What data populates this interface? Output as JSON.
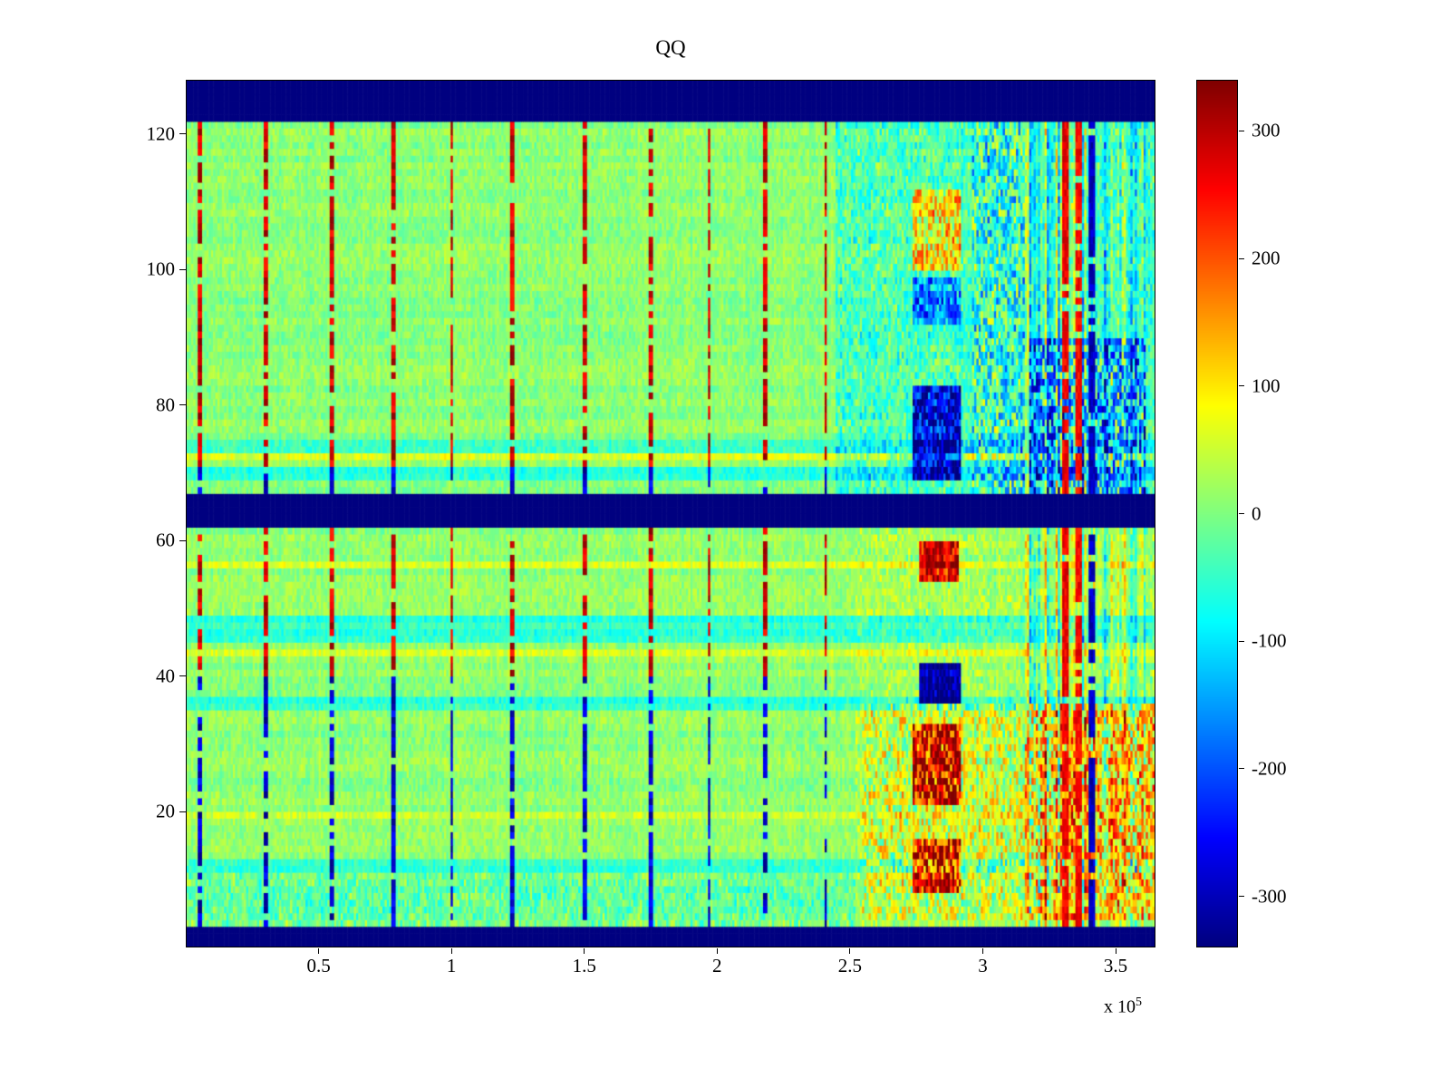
{
  "chart_data": {
    "type": "heatmap",
    "title": "QQ",
    "xlabel": "",
    "ylabel": "",
    "xlim": [
      0,
      365000
    ],
    "ylim": [
      0,
      128
    ],
    "xticks": [
      50000,
      100000,
      150000,
      200000,
      250000,
      300000,
      350000
    ],
    "xtick_labels": [
      "0.5",
      "1",
      "1.5",
      "2",
      "2.5",
      "3",
      "3.5"
    ],
    "x_axis_multiplier": {
      "text": "x 10",
      "exp": "5"
    },
    "yticks": [
      20,
      40,
      60,
      80,
      100,
      120
    ],
    "ytick_labels": [
      "20",
      "40",
      "60",
      "80",
      "100",
      "120"
    ],
    "grid": false,
    "legend": null,
    "colormap": "jet",
    "value_range": [
      -340,
      340
    ],
    "colorbar_ticks": [
      300,
      200,
      100,
      0,
      -100,
      -200,
      -300
    ],
    "colorbar_tick_labels": [
      "300",
      "200",
      "100",
      "0",
      "-100",
      "-200",
      "-300"
    ],
    "generation": {
      "seed": 11,
      "rows": 128,
      "cols": 440,
      "base_mean": 10,
      "row_offset_amp": 24,
      "cell_noise_amp": 60,
      "col_noise_amp": 18,
      "blank_value": -340,
      "blank_bands_y": [
        [
          122.2,
          128
        ],
        [
          62.1,
          66.9
        ],
        [
          0,
          2.6
        ]
      ],
      "cyan_rows": [
        74,
        73,
        70,
        69,
        48,
        47,
        46,
        45,
        36,
        35,
        12,
        11
      ],
      "cyan_row_offset": -65,
      "yellow_rows": [
        72,
        56,
        43,
        19
      ],
      "yellow_row_offset": 45,
      "spike_columns_x": [
        5000,
        30000,
        55000,
        78000,
        100000,
        123000,
        150000,
        175000,
        197000,
        218000,
        241000
      ],
      "spike_halfwidth_x": 750,
      "spike_sign_bands": [
        {
          "y": [
            71.5,
            122.2
          ],
          "sign": 1
        },
        {
          "y": [
            66.9,
            71.5
          ],
          "sign": -1
        },
        {
          "y": [
            40,
            62.1
          ],
          "sign": 1
        },
        {
          "y": [
            2.6,
            40
          ],
          "sign": -1
        }
      ],
      "regions": [
        {
          "x": [
            245000,
            365000
          ],
          "y": [
            66.9,
            122.2
          ],
          "offset": -45,
          "amp": 55
        },
        {
          "x": [
            252000,
            365000
          ],
          "y": [
            2.6,
            62.1
          ],
          "offset": 10,
          "amp": 35
        },
        {
          "x": [
            255000,
            318000
          ],
          "y": [
            4,
            36
          ],
          "offset": 30,
          "amp": 60
        },
        {
          "x": [
            296000,
            316000
          ],
          "y": [
            66.9,
            122.2
          ],
          "offset": -20,
          "amp": 70
        },
        {
          "x": [
            274000,
            292000
          ],
          "y": [
            100,
            112
          ],
          "offset": 130,
          "amp": 60
        },
        {
          "x": [
            274000,
            292000
          ],
          "y": [
            92,
            99
          ],
          "offset": -120,
          "amp": 50
        },
        {
          "x": [
            274000,
            292000
          ],
          "y": [
            69,
            83
          ],
          "offset": -230,
          "amp": 60
        },
        {
          "x": [
            276000,
            291000
          ],
          "y": [
            54,
            60
          ],
          "offset": 250,
          "amp": 60
        },
        {
          "x": [
            276000,
            292000
          ],
          "y": [
            36.5,
            41.5
          ],
          "offset": -330,
          "amp": 25
        },
        {
          "x": [
            274000,
            292000
          ],
          "y": [
            21,
            33
          ],
          "offset": 225,
          "amp": 70
        },
        {
          "x": [
            274000,
            292000
          ],
          "y": [
            8,
            15.5
          ],
          "offset": 235,
          "amp": 80
        },
        {
          "x": [
            318000,
            362000
          ],
          "y": [
            66.9,
            90
          ],
          "offset": -85,
          "amp": 100
        },
        {
          "x": [
            318000,
            365000
          ],
          "y": [
            4,
            36
          ],
          "offset": 95,
          "amp": 100
        },
        {
          "x": [
            0,
            252000
          ],
          "y": [
            2.6,
            11
          ],
          "offset": -25,
          "amp": 45
        }
      ],
      "striation": {
        "x": [
          315000,
          362000
        ],
        "amp": 110
      },
      "vertical_lines": [
        {
          "x": 331500,
          "halfwidth": 1300,
          "value": 265
        },
        {
          "x": 336500,
          "halfwidth": 1100,
          "value": 255
        },
        {
          "x": 341500,
          "halfwidth": 1200,
          "value": -300
        }
      ]
    }
  }
}
